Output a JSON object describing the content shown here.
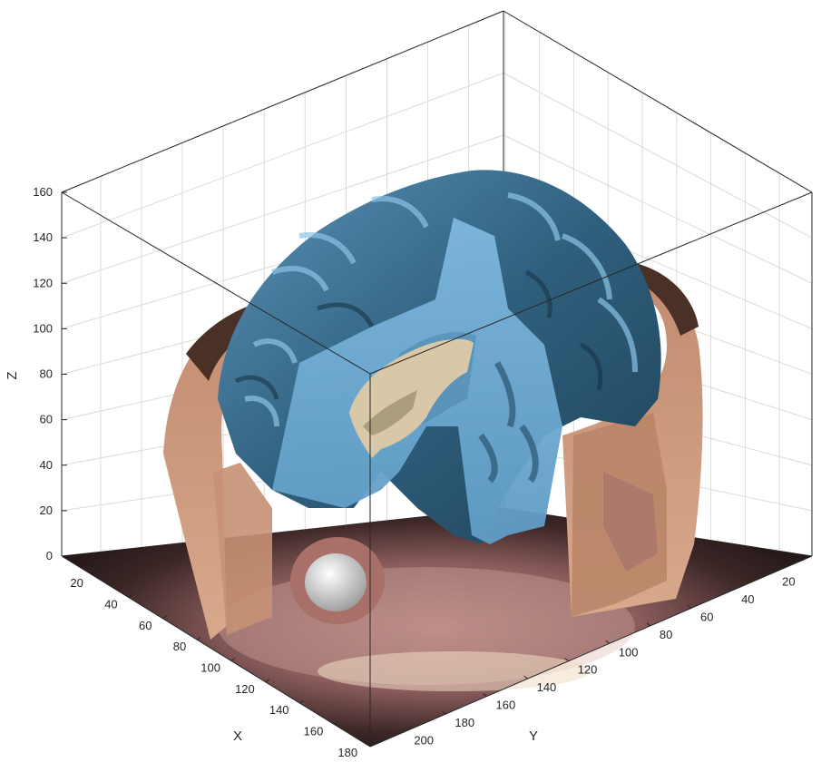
{
  "chart_data": {
    "type": "volume-surface-3d",
    "xlabel": "X",
    "ylabel": "Y",
    "zlabel": "Z",
    "x_ticks": [
      20,
      40,
      60,
      80,
      100,
      120,
      140,
      160,
      180
    ],
    "y_ticks": [
      20,
      40,
      60,
      80,
      100,
      120,
      140,
      160,
      180,
      200
    ],
    "z_ticks": [
      0,
      20,
      40,
      60,
      80,
      100,
      120,
      140,
      160
    ],
    "xlim": [
      1,
      181
    ],
    "ylim": [
      1,
      217
    ],
    "zlim": [
      0,
      160
    ],
    "grid": true,
    "box": true,
    "surfaces": [
      {
        "name": "scalp",
        "color": "#d4a58a"
      },
      {
        "name": "brain",
        "color": "#6fa9cf"
      },
      {
        "name": "ventricles",
        "color": "#d8c8a8"
      },
      {
        "name": "eye",
        "color": "#e6e6e6"
      }
    ],
    "floor_slice": {
      "z": 0,
      "colormap": "pink"
    }
  }
}
